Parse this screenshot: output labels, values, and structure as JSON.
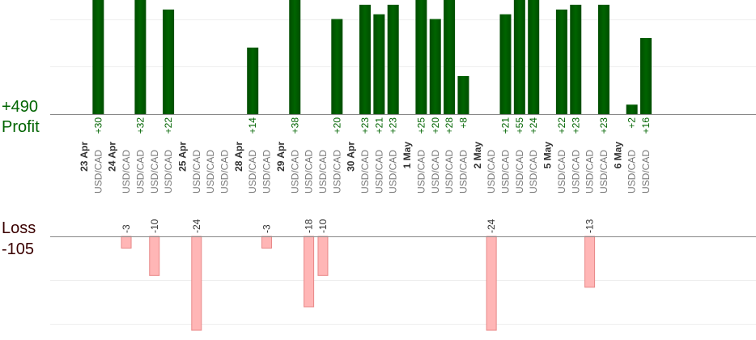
{
  "chart_data": {
    "type": "bar",
    "profit": {
      "label": "Profit",
      "total": "+490",
      "color": "#006400",
      "ymax": 24,
      "slots": [
        {
          "label": "+30",
          "value": 30
        },
        {
          "label": "+32",
          "value": 32
        },
        {
          "label": "+22",
          "value": 22
        },
        {
          "label": "+14",
          "value": 14
        },
        {
          "label": "+38",
          "value": 38
        },
        {
          "label": "+20",
          "value": 20
        },
        {
          "label": "+23",
          "value": 23
        },
        {
          "label": "+21",
          "value": 21
        },
        {
          "label": "+23",
          "value": 23
        },
        {
          "label": "+25",
          "value": 25
        },
        {
          "label": "+20",
          "value": 20
        },
        {
          "label": "+28",
          "value": 28
        },
        {
          "label": "+8",
          "value": 8
        },
        {
          "label": "+21",
          "value": 21
        },
        {
          "label": "+55",
          "value": 55
        },
        {
          "label": "+24",
          "value": 24
        },
        {
          "label": "+22",
          "value": 22
        },
        {
          "label": "+23",
          "value": 23
        },
        {
          "label": "+23",
          "value": 23
        },
        {
          "label": "+2",
          "value": 2
        },
        {
          "label": "+16",
          "value": 16
        }
      ]
    },
    "loss": {
      "label": "Loss",
      "total": "-105",
      "color": "#ffb6b6",
      "border": "#e88888",
      "ymax": 24,
      "bars": [
        {
          "label": "-3",
          "value": -3
        },
        {
          "label": "-10",
          "value": -10
        },
        {
          "label": "-24",
          "value": -24
        },
        {
          "label": "-3",
          "value": -3
        },
        {
          "label": "-18",
          "value": -18
        },
        {
          "label": "-10",
          "value": -10
        },
        {
          "label": "-24",
          "value": -24
        },
        {
          "label": "-13",
          "value": -13
        }
      ]
    },
    "dates": [
      "23 Apr",
      "24 Apr",
      "25 Apr",
      "28 Apr",
      "29 Apr",
      "30 Apr",
      "1 May",
      "2 May",
      "5 May",
      "6 May"
    ],
    "pair_label": "USD/CAD",
    "rows": [
      {
        "date": 0
      },
      {
        "pair": true,
        "profit": 0
      },
      {
        "date": 1
      },
      {
        "pair": true,
        "loss": 0
      },
      {
        "pair": true,
        "profit": 1
      },
      {
        "pair": true,
        "loss": 1
      },
      {
        "pair": true,
        "profit": 2
      },
      {
        "date": 2
      },
      {
        "pair": true,
        "loss": 2
      },
      {
        "pair": true
      },
      {
        "pair": true
      },
      {
        "date": 3
      },
      {
        "pair": true,
        "profit": 3
      },
      {
        "pair": true,
        "loss": 3
      },
      {
        "date": 4
      },
      {
        "pair": true,
        "profit": 4
      },
      {
        "pair": true,
        "loss": 4
      },
      {
        "pair": true,
        "loss": 5
      },
      {
        "pair": true,
        "profit": 5
      },
      {
        "date": 5
      },
      {
        "pair": true,
        "profit": 6
      },
      {
        "pair": true,
        "profit": 7
      },
      {
        "pair": true,
        "profit": 8
      },
      {
        "date": 6
      },
      {
        "pair": true,
        "profit": 9
      },
      {
        "pair": true,
        "profit": 10
      },
      {
        "pair": true,
        "profit": 11
      },
      {
        "pair": true,
        "profit": 12
      },
      {
        "date": 7
      },
      {
        "pair": true,
        "loss": 6
      },
      {
        "pair": true,
        "profit": 13
      },
      {
        "pair": true,
        "profit": 14
      },
      {
        "pair": true,
        "profit": 15
      },
      {
        "date": 8
      },
      {
        "pair": true,
        "profit": 16
      },
      {
        "pair": true,
        "profit": 17
      },
      {
        "pair": true,
        "loss": 7
      },
      {
        "pair": true,
        "profit": 18
      },
      {
        "date": 9
      },
      {
        "pair": true,
        "profit": 19
      },
      {
        "pair": true,
        "profit": 20
      }
    ]
  }
}
